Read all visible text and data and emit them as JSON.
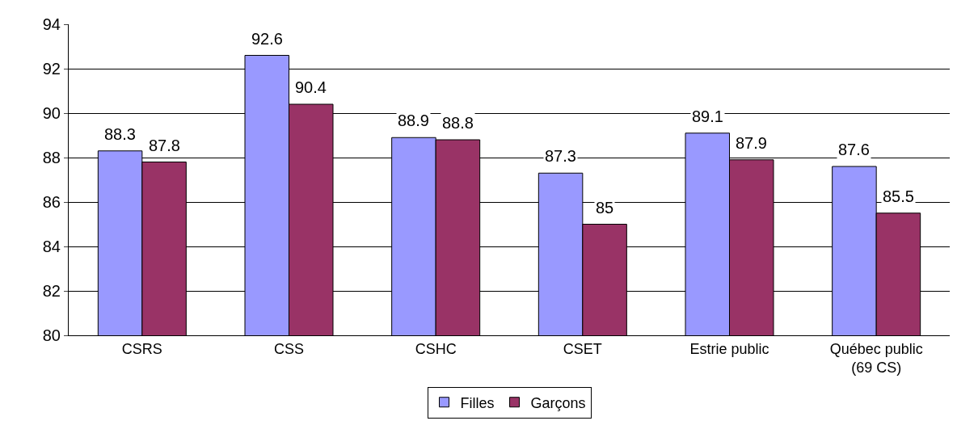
{
  "chart_data": {
    "type": "bar",
    "categories": [
      "CSRS",
      "CSS",
      "CSHC",
      "CSET",
      "Estrie public",
      "Québec public\n(69 CS)"
    ],
    "series": [
      {
        "name": "Filles",
        "color": "#9999ff",
        "values": [
          88.3,
          92.6,
          88.9,
          87.3,
          89.1,
          87.6
        ]
      },
      {
        "name": "Garçons",
        "color": "#993366",
        "values": [
          87.8,
          90.4,
          88.8,
          85,
          87.9,
          85.5
        ]
      }
    ],
    "ylim": [
      80,
      94
    ],
    "yticks": [
      80,
      82,
      84,
      86,
      88,
      90,
      92,
      94
    ],
    "grid": "y",
    "legend": "bottom",
    "data_labels": true
  }
}
